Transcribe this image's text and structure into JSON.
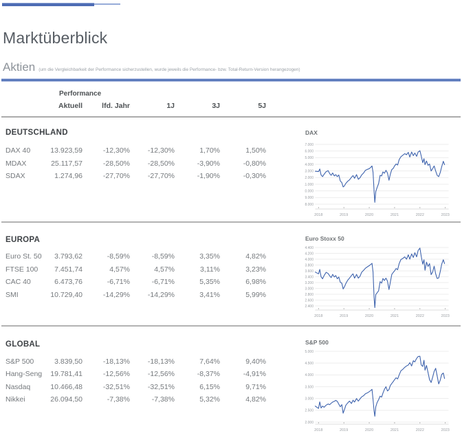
{
  "page": {
    "title": "Marktüberblick",
    "section_label": "Aktien",
    "section_note": "(um die Vergleichbarkeit der Performance sicherzustellen, wurde jeweils die Performance- bzw. Total-Return-Version herangezogen)"
  },
  "colors": {
    "accent_blue": "#4d6cb4",
    "rule_blue": "#5b7abc",
    "chart_line": "#3e63ad",
    "divider_grey": "#ababab"
  },
  "table": {
    "group_header": "Performance",
    "columns": [
      "Aktuell",
      "lfd. Jahr",
      "1J",
      "3J",
      "5J"
    ],
    "sections": [
      {
        "title": "DEUTSCHLAND",
        "rows": [
          {
            "name": "DAX 40",
            "values": [
              "13.923,59",
              "-12,30%",
              "-12,30%",
              "1,70%",
              "1,50%"
            ]
          },
          {
            "name": "MDAX",
            "values": [
              "25.117,57",
              "-28,50%",
              "-28,50%",
              "-3,90%",
              "-0,80%"
            ]
          },
          {
            "name": "SDAX",
            "values": [
              "1.274,96",
              "-27,70%",
              "-27,70%",
              "-1,90%",
              "-0,30%"
            ]
          }
        ]
      },
      {
        "title": "EUROPA",
        "rows": [
          {
            "name": "Euro St. 50",
            "values": [
              "3.793,62",
              "-8,59%",
              "-8,59%",
              "3,35%",
              "4,82%"
            ]
          },
          {
            "name": "FTSE 100",
            "values": [
              "7.451,74",
              "4,57%",
              "4,57%",
              "3,11%",
              "3,23%"
            ]
          },
          {
            "name": "CAC 40",
            "values": [
              "6.473,76",
              "-6,71%",
              "-6,71%",
              "5,35%",
              "6,98%"
            ]
          },
          {
            "name": "SMI",
            "values": [
              "10.729,40",
              "-14,29%",
              "-14,29%",
              "3,41%",
              "5,99%"
            ]
          }
        ]
      },
      {
        "title": "GLOBAL",
        "rows": [
          {
            "name": "S&P 500",
            "values": [
              "3.839,50",
              "-18,13%",
              "-18,13%",
              "7,64%",
              "9,40%"
            ]
          },
          {
            "name": "Hang-Seng",
            "values": [
              "19.781,41",
              "-12,56%",
              "-12,56%",
              "-8,37%",
              "-4,91%"
            ]
          },
          {
            "name": "Nasdaq",
            "values": [
              "10.466,48",
              "-32,51%",
              "-32,51%",
              "6,15%",
              "9,71%"
            ]
          },
          {
            "name": "Nikkei",
            "values": [
              "26.094,50",
              "-7,38%",
              "-7,38%",
              "5,32%",
              "4,82%"
            ]
          }
        ]
      }
    ]
  },
  "chart_data": [
    {
      "type": "line",
      "title": "DAX",
      "xlabel": "",
      "ylabel": "",
      "grid": true,
      "legend_position": "none",
      "xlim": [
        2017.87,
        2023.13
      ],
      "xticks": [
        2018,
        2019,
        2020,
        2021,
        2022,
        2023
      ],
      "xtick_labels": [
        "2018",
        "2019",
        "2020",
        "2021",
        "2022",
        "2023"
      ],
      "yticks": [
        8000,
        9000,
        10000,
        11000,
        12000,
        13000,
        14000,
        15000,
        16000,
        17000
      ],
      "ytick_labels": [
        "8.000",
        "9.000",
        "10.000",
        "11.000",
        "12.000",
        "13.000",
        "14.000",
        "15.000",
        "16.000",
        "17.000"
      ],
      "points": [
        [
          2017.87,
          12950
        ],
        [
          2018.0,
          12900
        ],
        [
          2018.05,
          13300
        ],
        [
          2018.1,
          12400
        ],
        [
          2018.16,
          12150
        ],
        [
          2018.22,
          12500
        ],
        [
          2018.3,
          12900
        ],
        [
          2018.38,
          13050
        ],
        [
          2018.44,
          12600
        ],
        [
          2018.5,
          12350
        ],
        [
          2018.56,
          12700
        ],
        [
          2018.62,
          12250
        ],
        [
          2018.68,
          12450
        ],
        [
          2018.74,
          12150
        ],
        [
          2018.8,
          12400
        ],
        [
          2018.86,
          11500
        ],
        [
          2018.92,
          11250
        ],
        [
          2018.97,
          10600
        ],
        [
          2019.02,
          10750
        ],
        [
          2019.08,
          11150
        ],
        [
          2019.15,
          11450
        ],
        [
          2019.22,
          11650
        ],
        [
          2019.3,
          12050
        ],
        [
          2019.36,
          12300
        ],
        [
          2019.42,
          11900
        ],
        [
          2019.5,
          12450
        ],
        [
          2019.57,
          11750
        ],
        [
          2019.64,
          12000
        ],
        [
          2019.7,
          12400
        ],
        [
          2019.78,
          12700
        ],
        [
          2019.85,
          13100
        ],
        [
          2019.93,
          13250
        ],
        [
          2020.0,
          13350
        ],
        [
          2020.06,
          13550
        ],
        [
          2020.11,
          13750
        ],
        [
          2020.15,
          12800
        ],
        [
          2020.19,
          10000
        ],
        [
          2020.22,
          8280
        ],
        [
          2020.26,
          9900
        ],
        [
          2020.31,
          10500
        ],
        [
          2020.37,
          11100
        ],
        [
          2020.43,
          12350
        ],
        [
          2020.49,
          12250
        ],
        [
          2020.54,
          12850
        ],
        [
          2020.6,
          12650
        ],
        [
          2020.66,
          13100
        ],
        [
          2020.72,
          12700
        ],
        [
          2020.78,
          11600
        ],
        [
          2020.83,
          12500
        ],
        [
          2020.89,
          13200
        ],
        [
          2020.95,
          13400
        ],
        [
          2021.0,
          13750
        ],
        [
          2021.06,
          14050
        ],
        [
          2021.12,
          13900
        ],
        [
          2021.18,
          14700
        ],
        [
          2021.25,
          15150
        ],
        [
          2021.32,
          15350
        ],
        [
          2021.4,
          15600
        ],
        [
          2021.47,
          15450
        ],
        [
          2021.54,
          15800
        ],
        [
          2021.6,
          15100
        ],
        [
          2021.67,
          15850
        ],
        [
          2021.74,
          15300
        ],
        [
          2021.8,
          15700
        ],
        [
          2021.87,
          15200
        ],
        [
          2021.93,
          15850
        ],
        [
          2022.0,
          16050
        ],
        [
          2022.05,
          15250
        ],
        [
          2022.11,
          14250
        ],
        [
          2022.16,
          14850
        ],
        [
          2022.2,
          13950
        ],
        [
          2022.26,
          14500
        ],
        [
          2022.32,
          13850
        ],
        [
          2022.38,
          14050
        ],
        [
          2022.44,
          13000
        ],
        [
          2022.5,
          13350
        ],
        [
          2022.56,
          13750
        ],
        [
          2022.62,
          13000
        ],
        [
          2022.68,
          12350
        ],
        [
          2022.74,
          12150
        ],
        [
          2022.8,
          12750
        ],
        [
          2022.86,
          13650
        ],
        [
          2022.92,
          14450
        ],
        [
          2022.97,
          13950
        ]
      ]
    },
    {
      "type": "line",
      "title": "Euro Stoxx 50",
      "xlabel": "",
      "ylabel": "",
      "grid": true,
      "legend_position": "none",
      "xlim": [
        2017.87,
        2023.13
      ],
      "xticks": [
        2018,
        2019,
        2020,
        2021,
        2022,
        2023
      ],
      "xtick_labels": [
        "2018",
        "2019",
        "2020",
        "2021",
        "2022",
        "2023"
      ],
      "yticks": [
        2400,
        2600,
        2800,
        3000,
        3200,
        3400,
        3600,
        3800,
        4000,
        4200,
        4400
      ],
      "ytick_labels": [
        "2.400",
        "2.600",
        "2.800",
        "3.000",
        "3.200",
        "3.400",
        "3.600",
        "3.800",
        "4.000",
        "4.200",
        "4.400"
      ],
      "points": [
        [
          2017.87,
          3560
        ],
        [
          2018.0,
          3500
        ],
        [
          2018.05,
          3650
        ],
        [
          2018.1,
          3400
        ],
        [
          2018.16,
          3330
        ],
        [
          2018.22,
          3440
        ],
        [
          2018.3,
          3550
        ],
        [
          2018.38,
          3510
        ],
        [
          2018.44,
          3430
        ],
        [
          2018.5,
          3370
        ],
        [
          2018.56,
          3480
        ],
        [
          2018.62,
          3390
        ],
        [
          2018.68,
          3440
        ],
        [
          2018.74,
          3330
        ],
        [
          2018.8,
          3390
        ],
        [
          2018.86,
          3210
        ],
        [
          2018.92,
          3180
        ],
        [
          2018.97,
          2980
        ],
        [
          2019.02,
          3050
        ],
        [
          2019.08,
          3170
        ],
        [
          2019.15,
          3280
        ],
        [
          2019.22,
          3350
        ],
        [
          2019.3,
          3440
        ],
        [
          2019.36,
          3500
        ],
        [
          2019.42,
          3350
        ],
        [
          2019.5,
          3480
        ],
        [
          2019.57,
          3350
        ],
        [
          2019.64,
          3420
        ],
        [
          2019.7,
          3550
        ],
        [
          2019.78,
          3620
        ],
        [
          2019.85,
          3690
        ],
        [
          2019.93,
          3740
        ],
        [
          2020.0,
          3780
        ],
        [
          2020.06,
          3820
        ],
        [
          2020.11,
          3860
        ],
        [
          2020.15,
          3560
        ],
        [
          2020.19,
          2700
        ],
        [
          2020.22,
          2340
        ],
        [
          2020.26,
          2790
        ],
        [
          2020.31,
          2850
        ],
        [
          2020.37,
          2920
        ],
        [
          2020.43,
          3230
        ],
        [
          2020.49,
          3180
        ],
        [
          2020.54,
          3340
        ],
        [
          2020.6,
          3270
        ],
        [
          2020.66,
          3350
        ],
        [
          2020.72,
          3250
        ],
        [
          2020.78,
          2960
        ],
        [
          2020.83,
          3210
        ],
        [
          2020.89,
          3480
        ],
        [
          2020.95,
          3550
        ],
        [
          2021.0,
          3600
        ],
        [
          2021.06,
          3680
        ],
        [
          2021.12,
          3640
        ],
        [
          2021.18,
          3850
        ],
        [
          2021.25,
          3990
        ],
        [
          2021.32,
          4020
        ],
        [
          2021.4,
          4080
        ],
        [
          2021.47,
          4000
        ],
        [
          2021.54,
          4150
        ],
        [
          2021.6,
          4000
        ],
        [
          2021.67,
          4180
        ],
        [
          2021.74,
          4060
        ],
        [
          2021.8,
          4220
        ],
        [
          2021.87,
          4080
        ],
        [
          2021.93,
          4300
        ],
        [
          2022.0,
          4380
        ],
        [
          2022.05,
          4100
        ],
        [
          2022.11,
          3830
        ],
        [
          2022.16,
          3980
        ],
        [
          2022.2,
          3620
        ],
        [
          2022.26,
          3900
        ],
        [
          2022.32,
          3750
        ],
        [
          2022.38,
          3850
        ],
        [
          2022.44,
          3470
        ],
        [
          2022.5,
          3560
        ],
        [
          2022.56,
          3760
        ],
        [
          2022.62,
          3500
        ],
        [
          2022.68,
          3340
        ],
        [
          2022.74,
          3360
        ],
        [
          2022.8,
          3570
        ],
        [
          2022.86,
          3830
        ],
        [
          2022.92,
          3980
        ],
        [
          2022.97,
          3850
        ]
      ]
    },
    {
      "type": "line",
      "title": "S&P 500",
      "xlabel": "",
      "ylabel": "",
      "grid": true,
      "legend_position": "none",
      "xlim": [
        2017.87,
        2023.13
      ],
      "xticks": [
        2018,
        2019,
        2020,
        2021,
        2022,
        2023
      ],
      "xtick_labels": [
        "2018",
        "2019",
        "2020",
        "2021",
        "2022",
        "2023"
      ],
      "yticks": [
        2000,
        2500,
        3000,
        3500,
        4000,
        4500,
        5000
      ],
      "ytick_labels": [
        "2.000",
        "2.500",
        "3.000",
        "3.500",
        "4.000",
        "4.500",
        "5.000"
      ],
      "points": [
        [
          2017.87,
          2680
        ],
        [
          2018.0,
          2580
        ],
        [
          2018.05,
          2860
        ],
        [
          2018.1,
          2600
        ],
        [
          2018.16,
          2680
        ],
        [
          2018.22,
          2630
        ],
        [
          2018.3,
          2720
        ],
        [
          2018.38,
          2770
        ],
        [
          2018.44,
          2740
        ],
        [
          2018.5,
          2800
        ],
        [
          2018.56,
          2850
        ],
        [
          2018.62,
          2880
        ],
        [
          2018.68,
          2920
        ],
        [
          2018.74,
          2880
        ],
        [
          2018.8,
          2760
        ],
        [
          2018.86,
          2650
        ],
        [
          2018.92,
          2740
        ],
        [
          2018.97,
          2380
        ],
        [
          2019.02,
          2520
        ],
        [
          2019.08,
          2720
        ],
        [
          2019.15,
          2810
        ],
        [
          2019.22,
          2890
        ],
        [
          2019.3,
          2790
        ],
        [
          2019.36,
          2930
        ],
        [
          2019.42,
          2850
        ],
        [
          2019.5,
          3000
        ],
        [
          2019.57,
          2890
        ],
        [
          2019.64,
          2990
        ],
        [
          2019.7,
          3070
        ],
        [
          2019.78,
          3120
        ],
        [
          2019.85,
          3200
        ],
        [
          2019.93,
          3240
        ],
        [
          2020.0,
          3290
        ],
        [
          2020.06,
          3340
        ],
        [
          2020.11,
          3390
        ],
        [
          2020.15,
          2960
        ],
        [
          2020.19,
          2480
        ],
        [
          2020.22,
          2250
        ],
        [
          2020.26,
          2650
        ],
        [
          2020.31,
          2830
        ],
        [
          2020.37,
          2950
        ],
        [
          2020.43,
          3100
        ],
        [
          2020.49,
          3060
        ],
        [
          2020.54,
          3230
        ],
        [
          2020.6,
          3390
        ],
        [
          2020.66,
          3500
        ],
        [
          2020.72,
          3320
        ],
        [
          2020.78,
          3380
        ],
        [
          2020.83,
          3550
        ],
        [
          2020.89,
          3640
        ],
        [
          2020.95,
          3720
        ],
        [
          2021.0,
          3800
        ],
        [
          2021.06,
          3880
        ],
        [
          2021.12,
          3830
        ],
        [
          2021.18,
          4000
        ],
        [
          2021.25,
          4180
        ],
        [
          2021.32,
          4230
        ],
        [
          2021.4,
          4320
        ],
        [
          2021.47,
          4380
        ],
        [
          2021.54,
          4420
        ],
        [
          2021.6,
          4520
        ],
        [
          2021.67,
          4380
        ],
        [
          2021.74,
          4600
        ],
        [
          2021.8,
          4550
        ],
        [
          2021.87,
          4700
        ],
        [
          2021.93,
          4780
        ],
        [
          2022.0,
          4790
        ],
        [
          2022.05,
          4420
        ],
        [
          2022.11,
          4360
        ],
        [
          2022.16,
          4620
        ],
        [
          2022.2,
          4200
        ],
        [
          2022.26,
          4400
        ],
        [
          2022.32,
          4100
        ],
        [
          2022.38,
          3800
        ],
        [
          2022.44,
          3680
        ],
        [
          2022.5,
          3900
        ],
        [
          2022.56,
          4150
        ],
        [
          2022.62,
          4280
        ],
        [
          2022.68,
          3950
        ],
        [
          2022.74,
          3620
        ],
        [
          2022.8,
          3780
        ],
        [
          2022.86,
          4020
        ],
        [
          2022.92,
          4080
        ],
        [
          2022.97,
          3850
        ]
      ]
    }
  ]
}
